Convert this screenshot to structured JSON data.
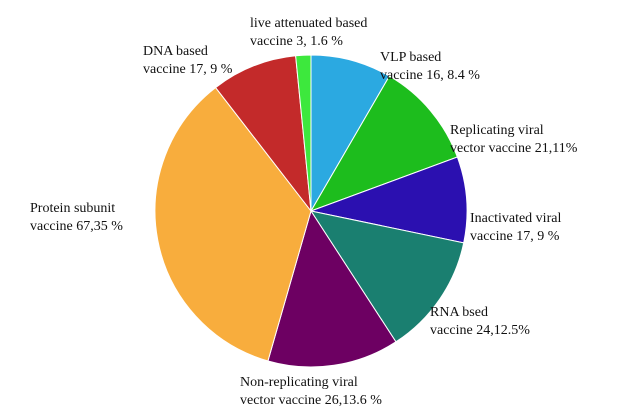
{
  "chart_data": {
    "type": "pie",
    "categories": [
      "VLP  based",
      "Replicating viral",
      "Inactivated viral",
      "RNA bsed",
      "Non-replicating viral",
      "Protein subunit",
      "DNA based",
      "live attenuated based"
    ],
    "values": [
      16,
      21,
      17,
      24,
      26,
      67,
      17,
      3
    ],
    "value_labels": [
      "vaccine 16, 8.4 %",
      "vector vaccine 21,11%",
      "vaccine 17, 9 %",
      "vaccine 24,12.5%",
      "vector vaccine 26,13.6 %",
      "vaccine 67,35 %",
      "vaccine 17, 9 %",
      "vaccine 3, 1.6 %"
    ],
    "colors": [
      "#2ba9e1",
      "#1dbd1d",
      "#2b10b0",
      "#1a7f70",
      "#6d0062",
      "#f8ad3d",
      "#c32a2a",
      "#3de83d"
    ]
  }
}
